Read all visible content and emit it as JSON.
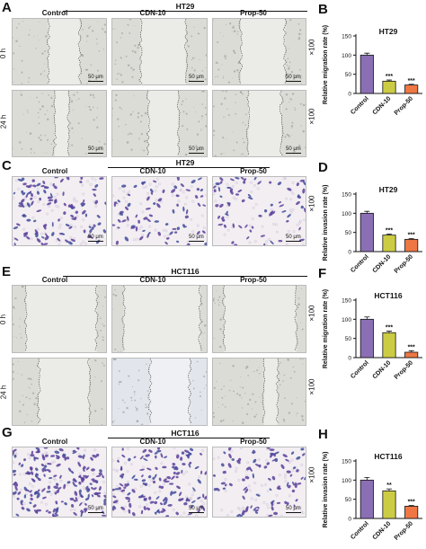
{
  "panels": {
    "A": {
      "letter": "A",
      "title": "HT29",
      "cols": [
        "Control",
        "CDN-10",
        "Prop-50"
      ],
      "rows": [
        "0 h",
        "24 h"
      ],
      "scale": "50 μm",
      "mag": "×100"
    },
    "C": {
      "letter": "C",
      "title": "HT29",
      "cols": [
        "Control",
        "CDN-10",
        "Prop-50"
      ],
      "scale": "50 μm",
      "mag": "×100"
    },
    "E": {
      "letter": "E",
      "title": "HCT116",
      "cols": [
        "Control",
        "CDN-10",
        "Prop-50"
      ],
      "rows": [
        "0 h",
        "24 h"
      ],
      "scale": "50 μm",
      "mag": "×100"
    },
    "G": {
      "letter": "G",
      "title": "HCT116",
      "cols": [
        "Control",
        "CDN-10",
        "Prop-50"
      ],
      "scale": "50 μm",
      "mag": "×100"
    }
  },
  "colors": {
    "control": "#8b6fb4",
    "cdn": "#cccc44",
    "prop": "#ee7744",
    "stain": "#5a3f9a",
    "wound_bg": "#dcdcd6"
  },
  "chart_data": [
    {
      "letter": "B",
      "type": "bar",
      "title": "HT29",
      "ylabel": "Relative migration rate (%)",
      "categories": [
        "Control",
        "CDN-10",
        "Prop-50"
      ],
      "values": [
        100,
        32,
        22
      ],
      "errors": [
        5,
        3,
        2
      ],
      "stars": [
        "",
        "***",
        "***"
      ],
      "ylim": [
        0,
        150
      ],
      "yticks": [
        0,
        50,
        100,
        150
      ]
    },
    {
      "letter": "D",
      "type": "bar",
      "title": "HT29",
      "ylabel": "Relative invasion rate (%)",
      "categories": [
        "Control",
        "CDN-10",
        "Prop-50"
      ],
      "values": [
        100,
        43,
        32
      ],
      "errors": [
        5,
        3,
        2
      ],
      "stars": [
        "",
        "***",
        "***"
      ],
      "ylim": [
        0,
        150
      ],
      "yticks": [
        0,
        50,
        100,
        150
      ]
    },
    {
      "letter": "F",
      "type": "bar",
      "title": "HCT116",
      "ylabel": "Relative migration rate (%)",
      "categories": [
        "Control",
        "CDN-10",
        "Prop-50"
      ],
      "values": [
        100,
        65,
        14
      ],
      "errors": [
        6,
        4,
        4
      ],
      "stars": [
        "",
        "***",
        "***"
      ],
      "ylim": [
        0,
        150
      ],
      "yticks": [
        0,
        50,
        100,
        150
      ]
    },
    {
      "letter": "H",
      "type": "bar",
      "title": "HCT116",
      "ylabel": "Relative invasion rate (%)",
      "categories": [
        "Control",
        "CDN-10",
        "Prop-50"
      ],
      "values": [
        100,
        72,
        32
      ],
      "errors": [
        7,
        5,
        2
      ],
      "stars": [
        "",
        "**",
        "***"
      ],
      "ylim": [
        0,
        150
      ],
      "yticks": [
        0,
        50,
        100,
        150
      ]
    }
  ]
}
